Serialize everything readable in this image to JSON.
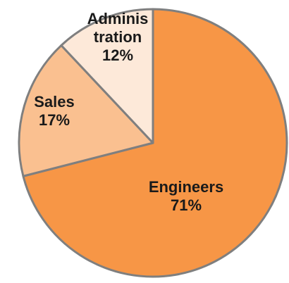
{
  "chart_data": {
    "type": "pie",
    "title": "",
    "slices": [
      {
        "label_lines": [
          "Engineers",
          "71%"
        ],
        "value": 71,
        "color": "#F79646"
      },
      {
        "label_lines": [
          "Sales",
          "17%"
        ],
        "value": 17,
        "color": "#FAC090"
      },
      {
        "label_lines": [
          "Adminis",
          "tration",
          "12%"
        ],
        "value": 12,
        "color": "#FDE9D9"
      }
    ],
    "start_angle_deg": 0,
    "direction": "clockwise",
    "legend": "none",
    "border_color": "#7F7F7F"
  }
}
